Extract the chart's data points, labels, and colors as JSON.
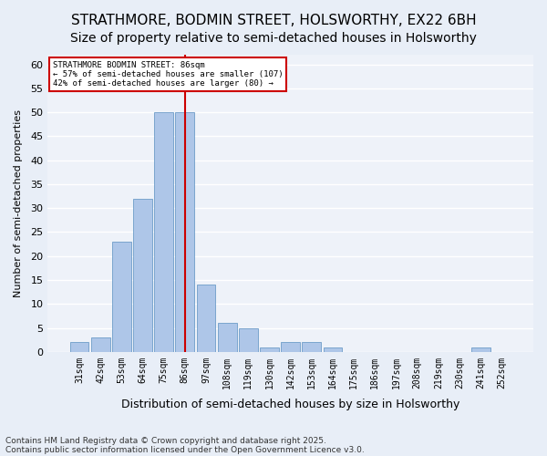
{
  "title1": "STRATHMORE, BODMIN STREET, HOLSWORTHY, EX22 6BH",
  "title2": "Size of property relative to semi-detached houses in Holsworthy",
  "xlabel": "Distribution of semi-detached houses by size in Holsworthy",
  "ylabel": "Number of semi-detached properties",
  "categories": [
    "31sqm",
    "42sqm",
    "53sqm",
    "64sqm",
    "75sqm",
    "86sqm",
    "97sqm",
    "108sqm",
    "119sqm",
    "130sqm",
    "142sqm",
    "153sqm",
    "164sqm",
    "175sqm",
    "186sqm",
    "197sqm",
    "208sqm",
    "219sqm",
    "230sqm",
    "241sqm",
    "252sqm"
  ],
  "values": [
    2,
    3,
    23,
    32,
    50,
    50,
    14,
    6,
    5,
    1,
    2,
    2,
    1,
    0,
    0,
    0,
    0,
    0,
    0,
    1,
    0
  ],
  "bar_color": "#aec6e8",
  "bar_edge_color": "#5a8fc0",
  "highlight_index": 5,
  "highlight_line_color": "#cc0000",
  "ylim": [
    0,
    62
  ],
  "yticks": [
    0,
    5,
    10,
    15,
    20,
    25,
    30,
    35,
    40,
    45,
    50,
    55,
    60
  ],
  "annotation_title": "STRATHMORE BODMIN STREET: 86sqm",
  "annotation_line1": "← 57% of semi-detached houses are smaller (107)",
  "annotation_line2": "42% of semi-detached houses are larger (80) →",
  "annotation_box_color": "#ffffff",
  "annotation_box_edge": "#cc0000",
  "footer1": "Contains HM Land Registry data © Crown copyright and database right 2025.",
  "footer2": "Contains public sector information licensed under the Open Government Licence v3.0.",
  "bg_color": "#e8eef7",
  "plot_bg_color": "#eef2f9",
  "grid_color": "#ffffff",
  "title_fontsize": 11,
  "subtitle_fontsize": 10
}
